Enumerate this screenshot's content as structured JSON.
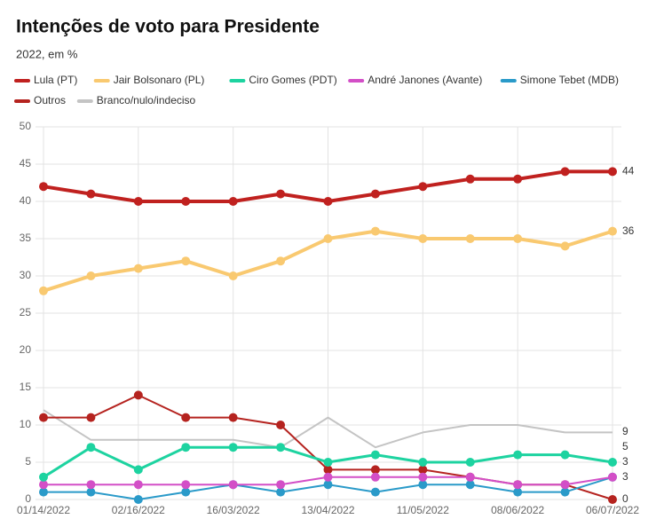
{
  "chart_data": {
    "type": "line",
    "title": "Intenções de voto para Presidente",
    "subtitle": "2022, em %",
    "categories": [
      "01/14/2022",
      null,
      "02/16/2022",
      null,
      "16/03/2022",
      null,
      "13/04/2022",
      null,
      "11/05/2022",
      null,
      "08/06/2022",
      null,
      "06/07/2022"
    ],
    "ylim": [
      0,
      50
    ],
    "yticks": [
      0,
      5,
      10,
      15,
      20,
      25,
      30,
      35,
      40,
      45,
      50
    ],
    "grid": true,
    "series": [
      {
        "name": "Lula (PT)",
        "color": "#c0211f",
        "line_width": 4,
        "values": [
          42,
          41,
          40,
          40,
          40,
          41,
          40,
          41,
          42,
          43,
          43,
          44,
          44
        ]
      },
      {
        "name": "Jair Bolsonaro (PL)",
        "color": "#f9c970",
        "line_width": 4,
        "values": [
          28,
          30,
          31,
          32,
          30,
          32,
          35,
          36,
          35,
          35,
          35,
          34,
          36
        ]
      },
      {
        "name": "Ciro Gomes (PDT)",
        "color": "#1dd3a0",
        "line_width": 3,
        "values": [
          3,
          7,
          4,
          7,
          7,
          7,
          5,
          6,
          5,
          5,
          6,
          6,
          5
        ]
      },
      {
        "name": "André Janones (Avante)",
        "color": "#d34fc7",
        "line_width": 2,
        "values": [
          2,
          2,
          2,
          2,
          2,
          2,
          3,
          3,
          3,
          3,
          2,
          2,
          3
        ]
      },
      {
        "name": "Simone Tebet (MDB)",
        "color": "#2a9ac9",
        "line_width": 2,
        "values": [
          1,
          1,
          0,
          1,
          2,
          1,
          2,
          1,
          2,
          2,
          1,
          1,
          3
        ]
      },
      {
        "name": "Outros",
        "color": "#b5231f",
        "line_width": 2,
        "values": [
          11,
          11,
          14,
          11,
          11,
          10,
          4,
          4,
          4,
          3,
          2,
          2,
          0
        ]
      },
      {
        "name": "Branco/nulo/indeciso",
        "color": "#c4c4c4",
        "line_width": 2,
        "markers": false,
        "values": [
          12,
          8,
          8,
          8,
          8,
          7,
          11,
          7,
          9,
          10,
          10,
          9,
          9
        ]
      }
    ]
  }
}
